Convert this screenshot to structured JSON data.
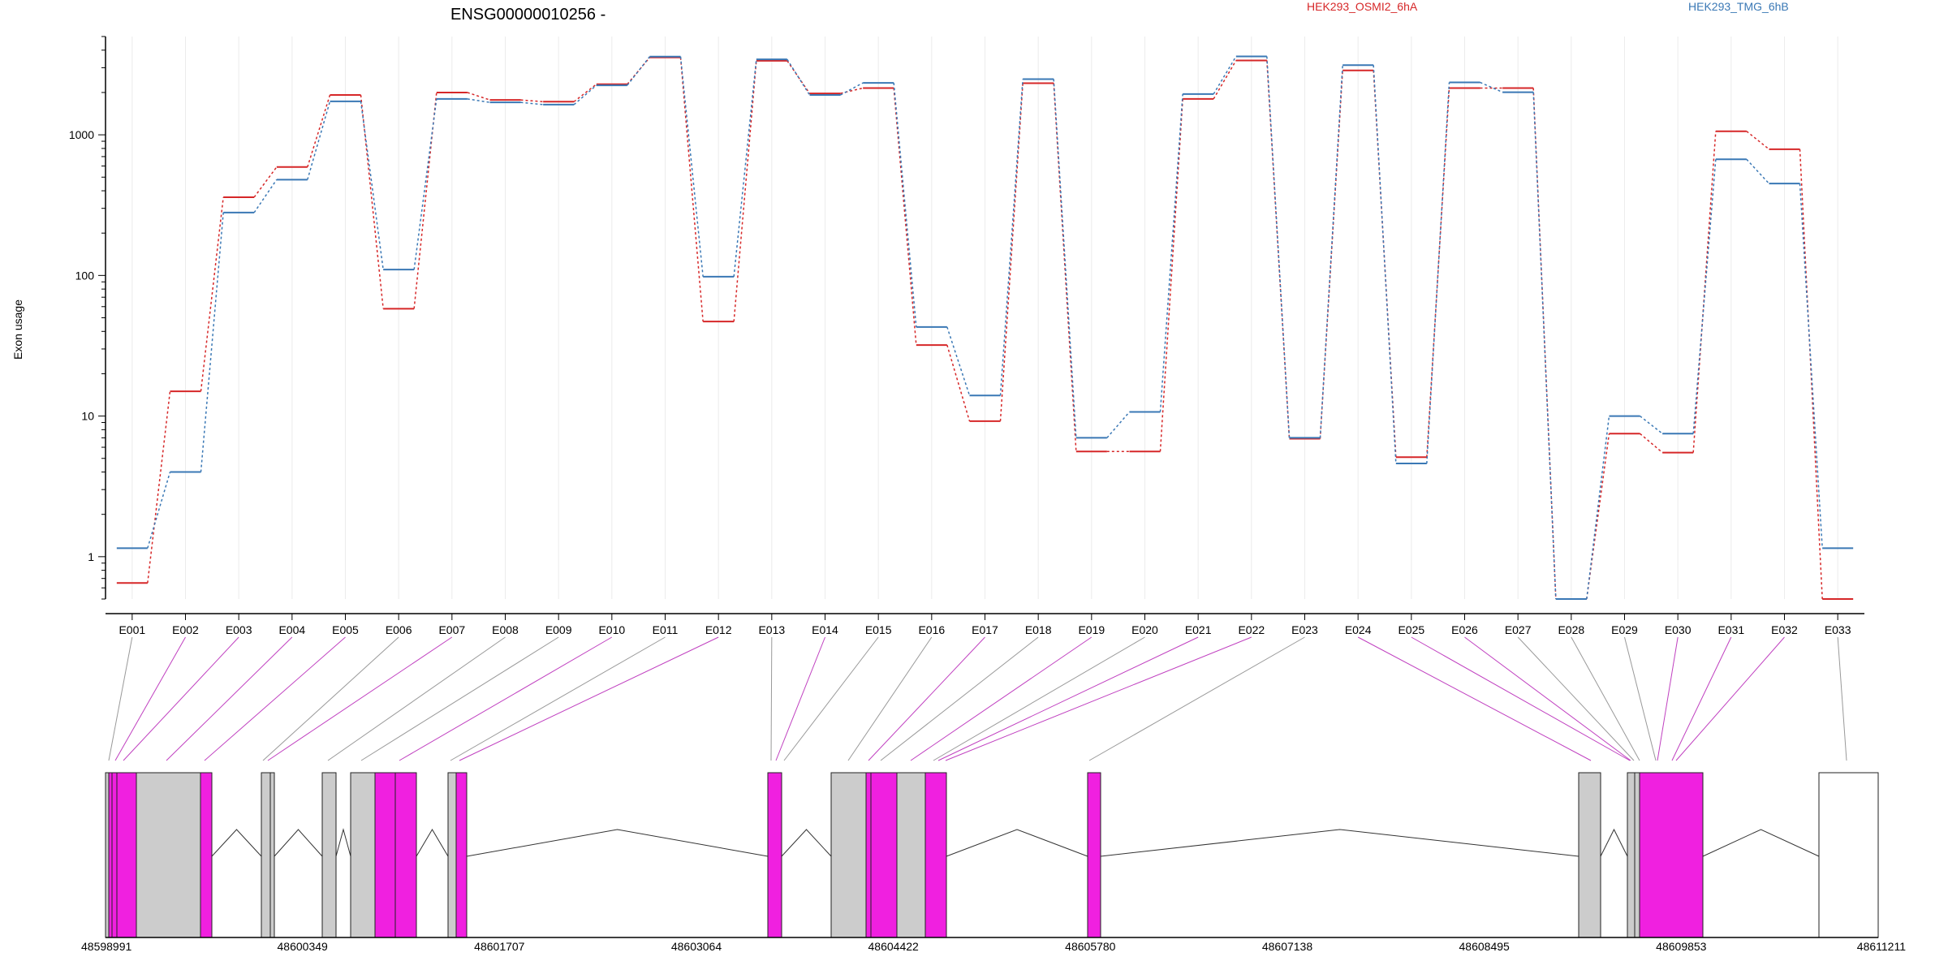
{
  "chart_data": {
    "type": "line",
    "title": "ENSG00000010256 -",
    "ylabel": "Exon usage",
    "y_scale": "log",
    "ylim": [
      0.5,
      5000
    ],
    "y_ticks": [
      {
        "value": 1,
        "label": "1"
      },
      {
        "value": 10,
        "label": "10"
      },
      {
        "value": 100,
        "label": "100"
      },
      {
        "value": 1000,
        "label": "1000"
      }
    ],
    "grid": "vertical",
    "legend_position": "top",
    "categories": [
      "E001",
      "E002",
      "E003",
      "E004",
      "E005",
      "E006",
      "E007",
      "E008",
      "E009",
      "E010",
      "E011",
      "E012",
      "E013",
      "E014",
      "E015",
      "E016",
      "E017",
      "E018",
      "E019",
      "E020",
      "E021",
      "E022",
      "E023",
      "E024",
      "E025",
      "E026",
      "E027",
      "E028",
      "E029",
      "E030",
      "E031",
      "E032",
      "E033"
    ],
    "series": [
      {
        "name": "HEK293_OSMI2_6hA",
        "color": "#d62728",
        "values": [
          0.65,
          15,
          360,
          590,
          1920,
          58,
          2000,
          1770,
          1720,
          2290,
          3550,
          47,
          3360,
          1970,
          2150,
          32,
          9.2,
          2330,
          5.6,
          5.6,
          1800,
          3380,
          6.9,
          2870,
          5.1,
          2150,
          2150,
          0.5,
          7.5,
          5.5,
          1060,
          790,
          0.5
        ]
      },
      {
        "name": "HEK293_TMG_6hB",
        "color": "#3a78b5",
        "values": [
          1.15,
          4,
          280,
          480,
          1730,
          110,
          1800,
          1700,
          1640,
          2250,
          3600,
          98,
          3440,
          1920,
          2340,
          43,
          14,
          2490,
          7,
          10.7,
          1950,
          3610,
          7,
          3130,
          4.6,
          2360,
          2010,
          0.5,
          10,
          7.5,
          670,
          450,
          1.15
        ]
      }
    ],
    "gene_model": {
      "coordinate_labels": [
        "48598991",
        "48600349",
        "48601707",
        "48603064",
        "48604422",
        "48605780",
        "48607138",
        "48608495",
        "48609853",
        "48611211"
      ],
      "connector_colors": {
        "used": "#c040c0",
        "unused": "#999999"
      },
      "exon_colors": {
        "differential": "#f020e0",
        "other": "#cccccc",
        "untested": "#ffffff"
      },
      "genomic_start": 48598991,
      "genomic_end": 48611211
    }
  }
}
